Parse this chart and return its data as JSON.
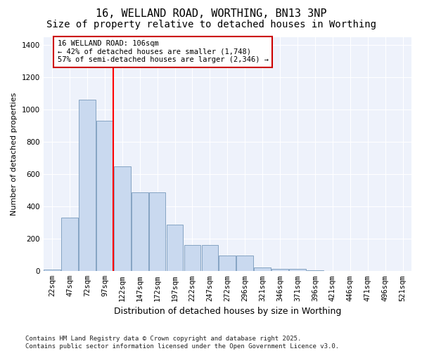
{
  "title1": "16, WELLAND ROAD, WORTHING, BN13 3NP",
  "title2": "Size of property relative to detached houses in Worthing",
  "xlabel": "Distribution of detached houses by size in Worthing",
  "ylabel": "Number of detached properties",
  "categories": [
    "22sqm",
    "47sqm",
    "72sqm",
    "97sqm",
    "122sqm",
    "147sqm",
    "172sqm",
    "197sqm",
    "222sqm",
    "247sqm",
    "272sqm",
    "296sqm",
    "321sqm",
    "346sqm",
    "371sqm",
    "396sqm",
    "421sqm",
    "446sqm",
    "471sqm",
    "496sqm",
    "521sqm"
  ],
  "values": [
    10,
    330,
    1060,
    930,
    650,
    490,
    490,
    290,
    160,
    160,
    95,
    95,
    25,
    13,
    13,
    7,
    3,
    3,
    0,
    0,
    0
  ],
  "bar_color": "#c9d9ef",
  "bar_edge_color": "#7799bb",
  "background_color": "#eef2fb",
  "grid_color": "#ffffff",
  "red_line_x": 3.5,
  "annotation_text": "16 WELLAND ROAD: 106sqm\n← 42% of detached houses are smaller (1,748)\n57% of semi-detached houses are larger (2,346) →",
  "annotation_box_facecolor": "#ffffff",
  "annotation_box_edgecolor": "#cc0000",
  "ylim": [
    0,
    1450
  ],
  "yticks": [
    0,
    200,
    400,
    600,
    800,
    1000,
    1200,
    1400
  ],
  "footer_text": "Contains HM Land Registry data © Crown copyright and database right 2025.\nContains public sector information licensed under the Open Government Licence v3.0.",
  "title_fontsize": 11,
  "subtitle_fontsize": 10,
  "ylabel_fontsize": 8,
  "xlabel_fontsize": 9,
  "tick_fontsize": 7.5,
  "annotation_fontsize": 7.5,
  "footer_fontsize": 6.5
}
